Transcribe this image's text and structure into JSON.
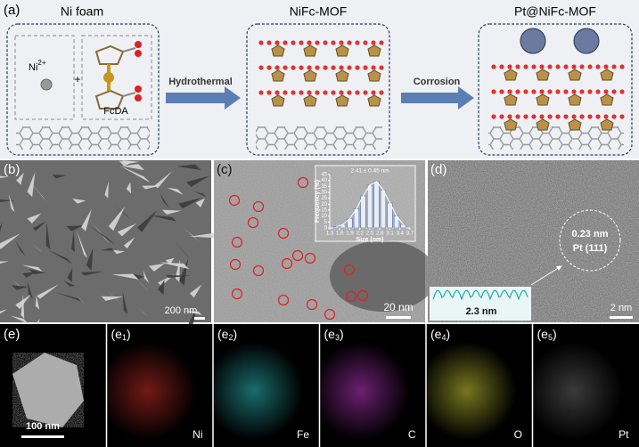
{
  "figure": {
    "a": {
      "label": "(a)",
      "titles": [
        "Ni foam",
        "NiFc-MOF",
        "Pt@NiFc-MOF"
      ],
      "ion": [
        "Ni",
        "2+"
      ],
      "plus": "+",
      "ligand": "FcDA",
      "arrows": [
        "Hydrothermal",
        "Corrosion"
      ]
    },
    "b": {
      "label": "(b)",
      "scale": "200 nm"
    },
    "c": {
      "label": "(c)",
      "scale": "20 nm",
      "inset": {
        "annotation": "2.41 ± 0.45 nm",
        "ylabel": "Frequency (%)",
        "xlabel": "Size (nm)",
        "ylim": [
          0,
          45
        ],
        "yticks": [
          0,
          5,
          10,
          15,
          20,
          25,
          30,
          35,
          40,
          45
        ],
        "xlim": [
          1.3,
          3.7
        ],
        "xticks": [
          1.3,
          1.6,
          1.9,
          2.2,
          2.5,
          2.8,
          3.1,
          3.4,
          3.7
        ],
        "bins": [
          1.4,
          1.6,
          1.8,
          2.0,
          2.2,
          2.4,
          2.6,
          2.8,
          3.0,
          3.2,
          3.4,
          3.6
        ],
        "values": [
          1,
          3,
          8,
          16,
          27,
          36,
          39,
          32,
          21,
          10,
          3
        ]
      }
    },
    "d": {
      "label": "(d)",
      "spacing": "0.23 nm",
      "plane": "Pt (111)",
      "profile": "2.3 nm",
      "scale": "2 nm"
    },
    "e": {
      "label": "(e)",
      "scale": "100 nm",
      "maps": [
        {
          "label": [
            "(e",
            "1",
            ")"
          ],
          "element": "Ni",
          "color": "#d0302a"
        },
        {
          "label": [
            "(e",
            "2",
            ")"
          ],
          "element": "Fe",
          "color": "#2fc4c4"
        },
        {
          "label": [
            "(e",
            "3",
            ")"
          ],
          "element": "C",
          "color": "#c23ad0"
        },
        {
          "label": [
            "(e",
            "4",
            ")"
          ],
          "element": "O",
          "color": "#d8d83a"
        },
        {
          "label": [
            "(e",
            "5",
            ")"
          ],
          "element": "Pt",
          "color": "#6a6a6a"
        }
      ]
    }
  }
}
